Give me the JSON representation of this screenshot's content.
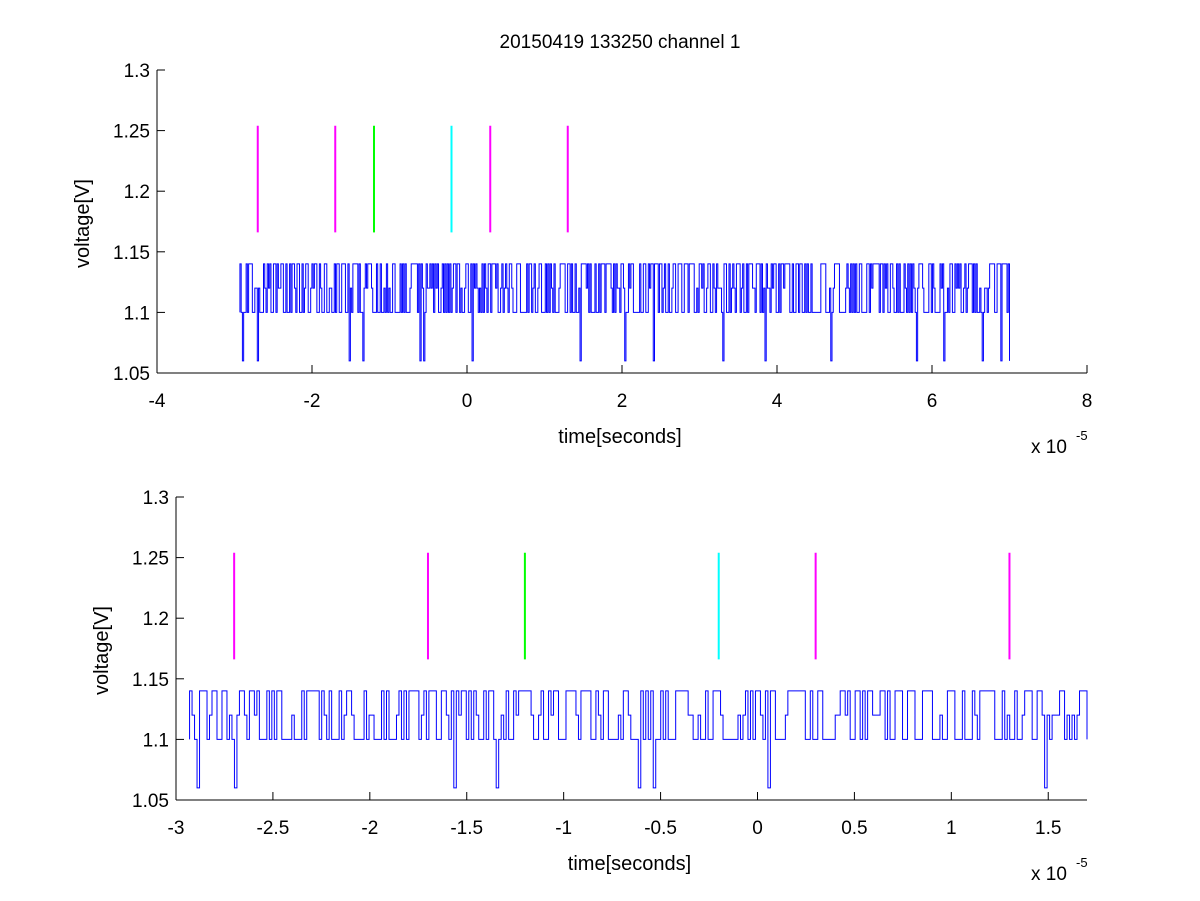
{
  "title": "20150419 133250 channel 1",
  "colors": {
    "signal": "#0000ff",
    "magenta": "#ff00ff",
    "green": "#00ff00",
    "cyan": "#00ffff",
    "axis": "#000000",
    "background": "#ffffff"
  },
  "chart_data": [
    {
      "type": "line",
      "title": "20150419 133250 channel 1",
      "xlabel": "time[seconds]",
      "ylabel": "voltage[V]",
      "x_exponent_label": "x 10",
      "x_exponent": "-5",
      "xlim": [
        -4,
        8
      ],
      "ylim": [
        1.05,
        1.3
      ],
      "xticks": [
        -4,
        -2,
        0,
        2,
        4,
        6,
        8
      ],
      "xtick_labels": [
        "-4",
        "-2",
        "0",
        "2",
        "4",
        "6",
        "8"
      ],
      "yticks": [
        1.05,
        1.1,
        1.15,
        1.2,
        1.25,
        1.3
      ],
      "ytick_labels": [
        "1.05",
        "1.1",
        "1.15",
        "1.2",
        "1.25",
        "1.3"
      ],
      "grid": false,
      "signal": {
        "x_range": [
          -2.93,
          7.0
        ],
        "baseline": 1.1,
        "high_level": 1.14,
        "mid_level": 1.12,
        "low_level": 1.06,
        "dips": [
          -2.89,
          -2.7,
          -1.52,
          -1.35,
          -0.6,
          -0.56,
          0.06,
          1.46,
          2.04,
          2.4,
          3.3,
          3.85,
          4.7,
          5.8,
          6.15,
          6.65,
          6.88,
          7.0
        ]
      },
      "markers": [
        {
          "x": -2.7,
          "y0": 1.166,
          "y1": 1.254,
          "color": "magenta"
        },
        {
          "x": -1.7,
          "y0": 1.166,
          "y1": 1.254,
          "color": "magenta"
        },
        {
          "x": -1.2,
          "y0": 1.166,
          "y1": 1.254,
          "color": "green"
        },
        {
          "x": -0.2,
          "y0": 1.166,
          "y1": 1.254,
          "color": "cyan"
        },
        {
          "x": 0.3,
          "y0": 1.166,
          "y1": 1.254,
          "color": "magenta"
        },
        {
          "x": 1.3,
          "y0": 1.166,
          "y1": 1.254,
          "color": "magenta"
        }
      ]
    },
    {
      "type": "line",
      "title": "",
      "xlabel": "time[seconds]",
      "ylabel": "voltage[V]",
      "x_exponent_label": "x 10",
      "x_exponent": "-5",
      "xlim": [
        -3.0,
        1.7
      ],
      "ylim": [
        1.05,
        1.3
      ],
      "xticks": [
        -3,
        -2.5,
        -2,
        -1.5,
        -1,
        -0.5,
        0,
        0.5,
        1,
        1.5
      ],
      "xtick_labels": [
        "-3",
        "-2.5",
        "-2",
        "-1.5",
        "-1",
        "-0.5",
        "0",
        "0.5",
        "1",
        "1.5"
      ],
      "yticks": [
        1.05,
        1.1,
        1.15,
        1.2,
        1.25,
        1.3
      ],
      "ytick_labels": [
        "1.05",
        "1.1",
        "1.15",
        "1.2",
        "1.25",
        "1.3"
      ],
      "grid": false,
      "signal": {
        "x_range": [
          -2.93,
          1.7
        ],
        "baseline": 1.1,
        "high_level": 1.14,
        "mid_level": 1.12,
        "low_level": 1.06,
        "dips": [
          -2.89,
          -2.7,
          -1.57,
          -1.35,
          -0.62,
          -0.54,
          0.05,
          1.48
        ]
      },
      "markers": [
        {
          "x": -2.7,
          "y0": 1.166,
          "y1": 1.254,
          "color": "magenta"
        },
        {
          "x": -1.7,
          "y0": 1.166,
          "y1": 1.254,
          "color": "magenta"
        },
        {
          "x": -1.2,
          "y0": 1.166,
          "y1": 1.254,
          "color": "green"
        },
        {
          "x": -0.2,
          "y0": 1.166,
          "y1": 1.254,
          "color": "cyan"
        },
        {
          "x": 0.3,
          "y0": 1.166,
          "y1": 1.254,
          "color": "magenta"
        },
        {
          "x": 1.3,
          "y0": 1.166,
          "y1": 1.254,
          "color": "magenta"
        }
      ]
    }
  ]
}
